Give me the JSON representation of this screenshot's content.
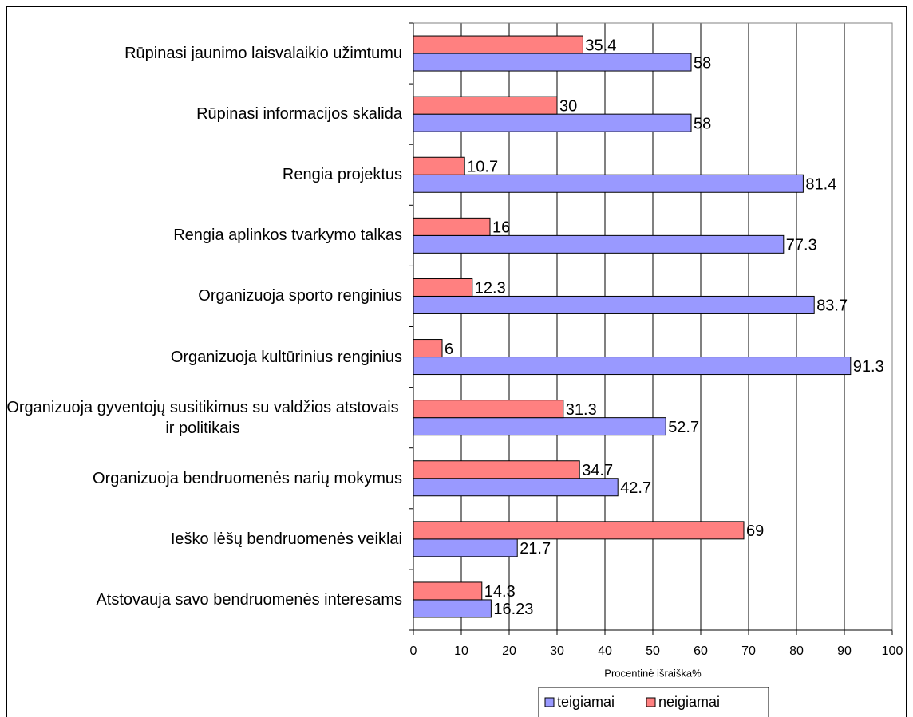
{
  "chart_data": {
    "type": "hbar",
    "categories": [
      "Rūpinasi jaunimo laisvalaikio užimtumu",
      "Rūpinasi informacijos skalida",
      "Rengia projektus",
      "Rengia aplinkos tvarkymo talkas",
      "Organizuoja sporto renginius",
      "Organizuoja kultūrinius renginius",
      "Organizuoja gyventojų susitikimus su valdžios atstovais ir politikais",
      "Organizuoja bendruomenės narių mokymus",
      "Ieško lėšų bendruomenės veiklai",
      "Atstovauja savo bendruomenės interesams"
    ],
    "series": [
      {
        "name": "teigiamai",
        "color": "#9999ff",
        "values": [
          58,
          58,
          81.4,
          77.3,
          83.7,
          91.3,
          52.7,
          42.7,
          21.7,
          16.23
        ]
      },
      {
        "name": "neigiamai",
        "color": "#ff8080",
        "values": [
          35.4,
          30,
          10.7,
          16,
          12.3,
          6,
          31.3,
          34.7,
          69,
          14.3
        ]
      }
    ],
    "xlabel": "Procentinė išraiška%",
    "xlim": [
      0,
      100
    ],
    "xticks": [
      0,
      10,
      20,
      30,
      40,
      50,
      60,
      70,
      80,
      90,
      100
    ],
    "grid": true,
    "legend": "bottom"
  }
}
